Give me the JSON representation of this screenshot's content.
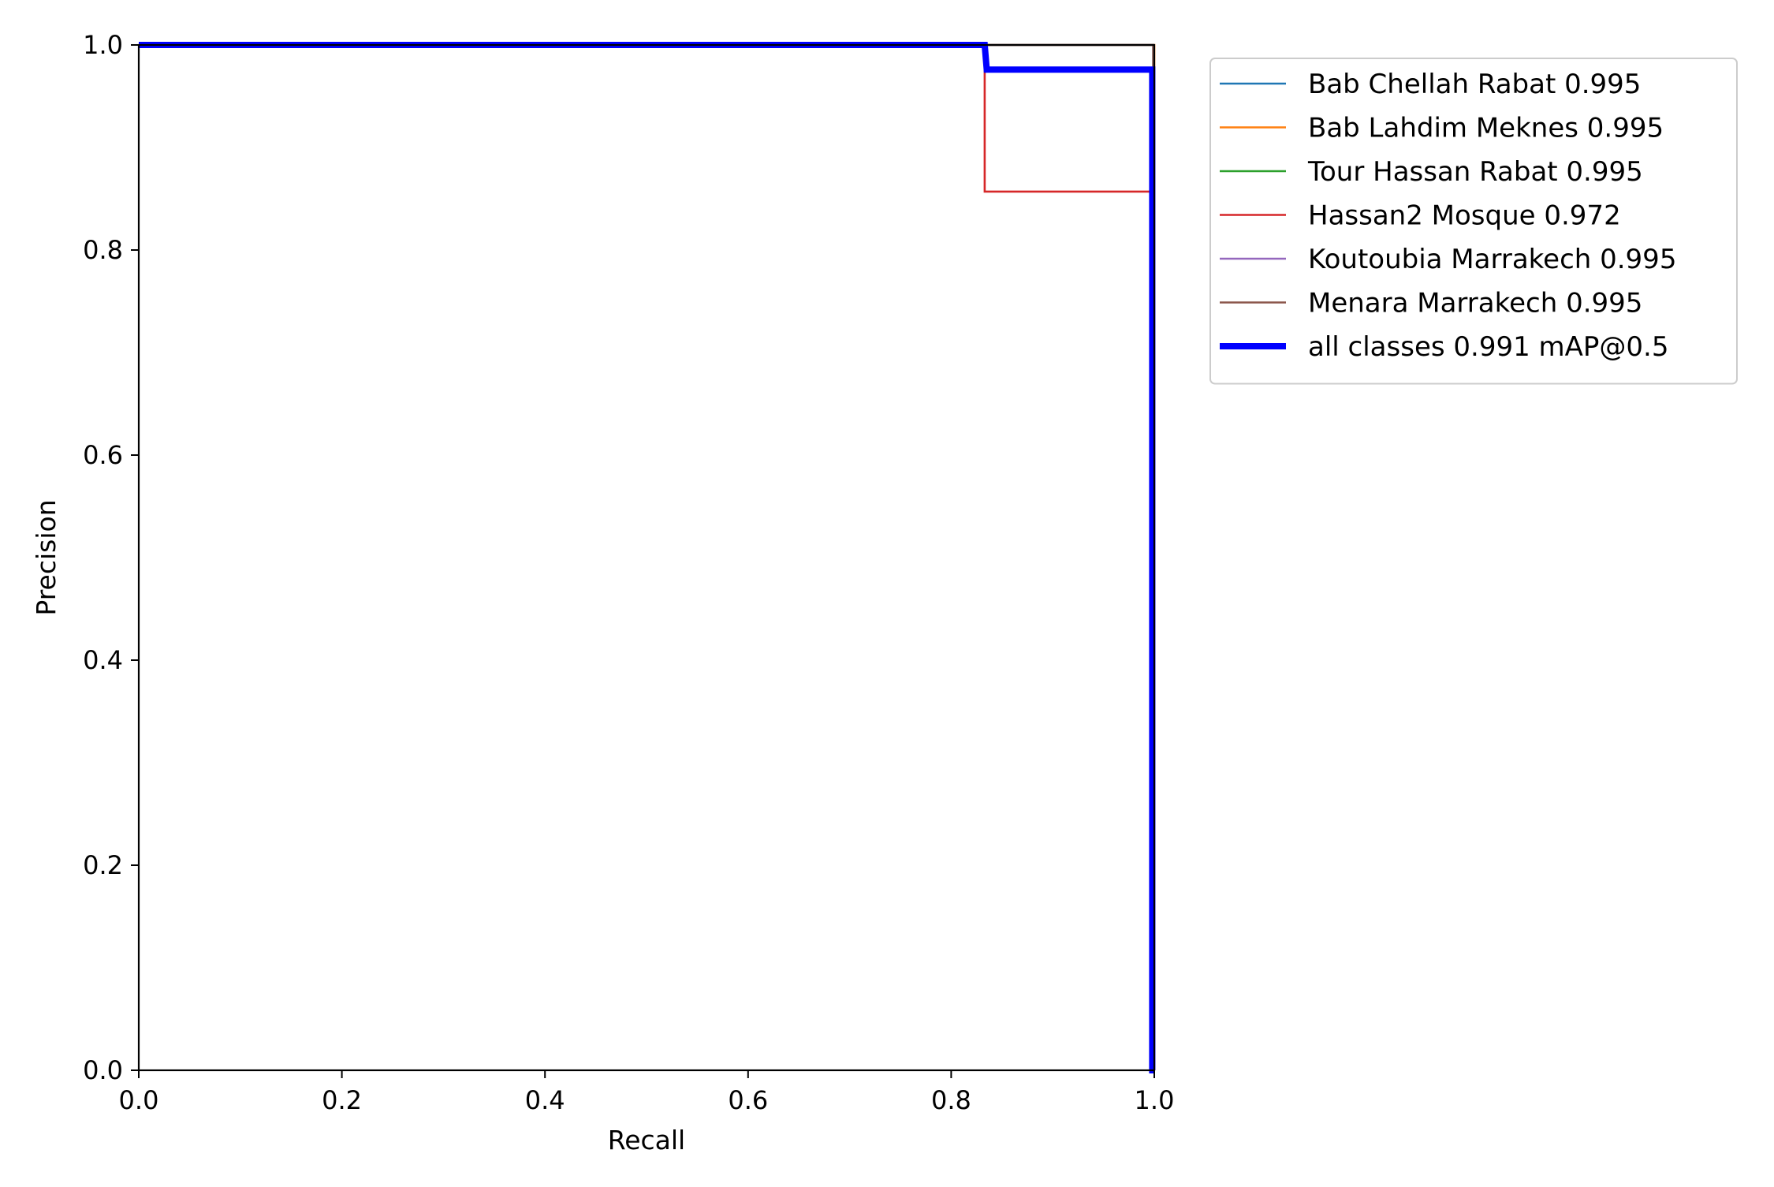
{
  "chart_data": {
    "type": "line",
    "title": "",
    "xlabel": "Recall",
    "ylabel": "Precision",
    "xlim": [
      0.0,
      1.0
    ],
    "ylim": [
      0.0,
      1.0
    ],
    "x_ticks": [
      "0.0",
      "0.2",
      "0.4",
      "0.6",
      "0.8",
      "1.0"
    ],
    "y_ticks": [
      "0.0",
      "0.2",
      "0.4",
      "0.6",
      "0.8",
      "1.0"
    ],
    "grid": false,
    "legend_position": "outside-top-right",
    "series": [
      {
        "name": "Bab Chellah Rabat 0.995",
        "color": "#1f77b4",
        "thick": false,
        "x": [
          0.0,
          0.999,
          0.999,
          1.0
        ],
        "y": [
          1.0,
          1.0,
          0.0,
          0.0
        ]
      },
      {
        "name": "Bab Lahdim Meknes 0.995",
        "color": "#ff7f0e",
        "thick": false,
        "x": [
          0.0,
          1.0,
          1.0
        ],
        "y": [
          1.0,
          1.0,
          0.0
        ]
      },
      {
        "name": "Tour Hassan Rabat 0.995",
        "color": "#2ca02c",
        "thick": false,
        "x": [
          0.0,
          0.999,
          0.999,
          1.0
        ],
        "y": [
          1.0,
          1.0,
          0.0,
          0.0
        ]
      },
      {
        "name": "Hassan2 Mosque 0.972",
        "color": "#d62728",
        "thick": false,
        "x": [
          0.0,
          0.833,
          0.833,
          0.998,
          0.998,
          1.0
        ],
        "y": [
          1.0,
          1.0,
          0.857,
          0.857,
          0.0,
          0.0
        ]
      },
      {
        "name": "Koutoubia Marrakech 0.995",
        "color": "#9467bd",
        "thick": false,
        "x": [
          0.0,
          0.999,
          0.999,
          1.0
        ],
        "y": [
          1.0,
          1.0,
          0.0,
          0.0
        ]
      },
      {
        "name": "Menara Marrakech 0.995",
        "color": "#8c564b",
        "thick": false,
        "x": [
          0.0,
          0.999,
          0.999,
          1.0
        ],
        "y": [
          1.0,
          1.0,
          0.0,
          0.0
        ]
      },
      {
        "name": "all classes 0.991 mAP@0.5",
        "color": "#0000ff",
        "thick": true,
        "x": [
          0.0,
          0.833,
          0.835,
          0.998,
          0.998,
          1.0
        ],
        "y": [
          1.0,
          1.0,
          0.976,
          0.976,
          0.0,
          0.0
        ]
      }
    ]
  }
}
